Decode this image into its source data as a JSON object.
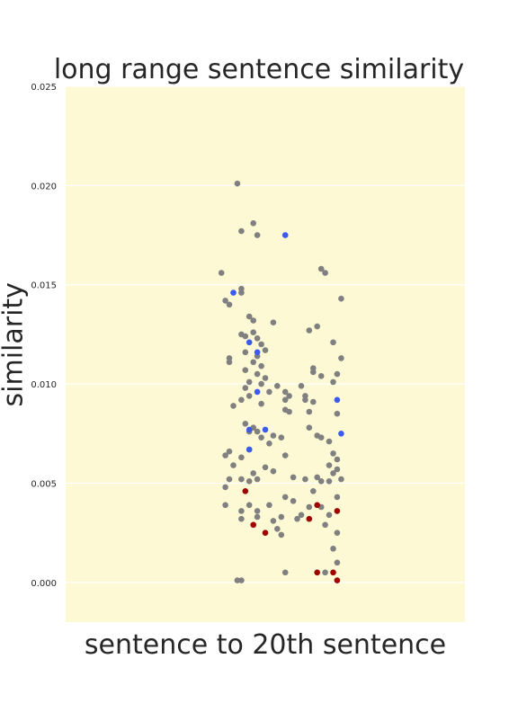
{
  "chart_data": {
    "type": "scatter",
    "title": "long range sentence similarity",
    "xlabel": "sentence to 20th sentence",
    "ylabel": "similarity",
    "ylim": [
      -0.002,
      0.025
    ],
    "yticks": [
      "0.000",
      "0.005",
      "0.010",
      "0.015",
      "0.020",
      "0.025"
    ],
    "ytick_values": [
      0.0,
      0.005,
      0.01,
      0.015,
      0.02,
      0.025
    ],
    "grid": true,
    "legend": "none",
    "colors": {
      "background": "#fdf9d4",
      "grid": "#ffffff",
      "gray": "#808080",
      "blue": "#3b5bf0",
      "red": "#a00000"
    },
    "x_range": [
      -0.5,
      0.5
    ],
    "series": [
      {
        "color": "gray",
        "points": [
          [
            -0.07,
            0.0201
          ],
          [
            -0.06,
            0.0177
          ],
          [
            -0.03,
            0.0181
          ],
          [
            -0.02,
            0.0175
          ],
          [
            0.14,
            0.0158
          ],
          [
            0.15,
            0.0156
          ],
          [
            -0.11,
            0.0156
          ],
          [
            -0.06,
            0.0148
          ],
          [
            -0.06,
            0.0146
          ],
          [
            -0.1,
            0.0142
          ],
          [
            -0.09,
            0.014
          ],
          [
            -0.04,
            0.0134
          ],
          [
            -0.03,
            0.0132
          ],
          [
            0.19,
            0.0143
          ],
          [
            0.02,
            0.0131
          ],
          [
            0.11,
            0.0127
          ],
          [
            0.13,
            0.0129
          ],
          [
            -0.06,
            0.0125
          ],
          [
            -0.05,
            0.0124
          ],
          [
            -0.03,
            0.0126
          ],
          [
            -0.02,
            0.0123
          ],
          [
            -0.01,
            0.012
          ],
          [
            0.17,
            0.0121
          ],
          [
            0.0,
            0.0117
          ],
          [
            -0.05,
            0.0116
          ],
          [
            -0.02,
            0.0114
          ],
          [
            -0.03,
            0.0111
          ],
          [
            -0.01,
            0.0109
          ],
          [
            -0.09,
            0.0113
          ],
          [
            -0.09,
            0.0111
          ],
          [
            0.19,
            0.0113
          ],
          [
            0.12,
            0.0108
          ],
          [
            0.12,
            0.0106
          ],
          [
            0.14,
            0.0104
          ],
          [
            0.18,
            0.0105
          ],
          [
            -0.05,
            0.0107
          ],
          [
            -0.02,
            0.0105
          ],
          [
            0.0,
            0.0103
          ],
          [
            -0.04,
            0.0101
          ],
          [
            -0.01,
            0.01
          ],
          [
            0.03,
            0.0099
          ],
          [
            0.09,
            0.0099
          ],
          [
            0.17,
            0.0101
          ],
          [
            -0.05,
            0.0098
          ],
          [
            0.01,
            0.0096
          ],
          [
            0.05,
            0.0096
          ],
          [
            0.06,
            0.0094
          ],
          [
            0.1,
            0.0094
          ],
          [
            -0.04,
            0.0094
          ],
          [
            -0.06,
            0.0092
          ],
          [
            0.1,
            0.0092
          ],
          [
            0.12,
            0.0091
          ],
          [
            0.05,
            0.0092
          ],
          [
            -0.08,
            0.0089
          ],
          [
            -0.01,
            0.009
          ],
          [
            0.05,
            0.0087
          ],
          [
            0.06,
            0.0086
          ],
          [
            0.11,
            0.0086
          ],
          [
            0.18,
            0.0085
          ],
          [
            -0.05,
            0.008
          ],
          [
            -0.03,
            0.0078
          ],
          [
            -0.02,
            0.0076
          ],
          [
            0.11,
            0.0078
          ],
          [
            -0.04,
            0.0076
          ],
          [
            0.02,
            0.0074
          ],
          [
            -0.01,
            0.0073
          ],
          [
            0.13,
            0.0074
          ],
          [
            0.14,
            0.0073
          ],
          [
            0.04,
            0.0073
          ],
          [
            0.16,
            0.0071
          ],
          [
            0.01,
            0.007
          ],
          [
            -0.04,
            0.0067
          ],
          [
            -0.09,
            0.0066
          ],
          [
            -0.1,
            0.0064
          ],
          [
            0.05,
            0.0064
          ],
          [
            0.17,
            0.0065
          ],
          [
            0.18,
            0.0062
          ],
          [
            -0.06,
            0.0063
          ],
          [
            0.0,
            0.0058
          ],
          [
            0.16,
            0.0059
          ],
          [
            -0.08,
            0.0059
          ],
          [
            0.18,
            0.0057
          ],
          [
            0.17,
            0.0055
          ],
          [
            0.02,
            0.0056
          ],
          [
            0.13,
            0.0053
          ],
          [
            0.14,
            0.0051
          ],
          [
            -0.03,
            0.0055
          ],
          [
            -0.09,
            0.0052
          ],
          [
            -0.06,
            0.0052
          ],
          [
            -0.04,
            0.0051
          ],
          [
            -0.02,
            0.0052
          ],
          [
            0.07,
            0.0053
          ],
          [
            0.1,
            0.0052
          ],
          [
            0.19,
            0.0052
          ],
          [
            0.12,
            0.0046
          ],
          [
            0.16,
            0.0051
          ],
          [
            -0.1,
            0.0048
          ],
          [
            0.05,
            0.0043
          ],
          [
            0.07,
            0.0041
          ],
          [
            0.11,
            0.0038
          ],
          [
            0.18,
            0.0043
          ],
          [
            0.16,
            0.0034
          ],
          [
            0.14,
            0.0038
          ],
          [
            -0.1,
            0.0039
          ],
          [
            -0.04,
            0.0039
          ],
          [
            0.01,
            0.0039
          ],
          [
            -0.02,
            0.0036
          ],
          [
            -0.06,
            0.0036
          ],
          [
            0.04,
            0.0033
          ],
          [
            0.02,
            0.0031
          ],
          [
            0.08,
            0.0032
          ],
          [
            -0.02,
            0.0033
          ],
          [
            0.09,
            0.0034
          ],
          [
            0.15,
            0.0029
          ],
          [
            0.18,
            0.0025
          ],
          [
            -0.06,
            0.0032
          ],
          [
            0.03,
            0.0027
          ],
          [
            0.04,
            0.0024
          ],
          [
            0.17,
            0.0017
          ],
          [
            0.18,
            0.001
          ],
          [
            0.05,
            0.0005
          ],
          [
            0.15,
            0.0005
          ],
          [
            -0.07,
            0.0001
          ],
          [
            -0.06,
            0.0001
          ]
        ]
      },
      {
        "color": "blue",
        "points": [
          [
            0.05,
            0.0175
          ],
          [
            -0.08,
            0.0146
          ],
          [
            -0.04,
            0.0121
          ],
          [
            -0.02,
            0.0116
          ],
          [
            -0.02,
            0.0096
          ],
          [
            0.18,
            0.0092
          ],
          [
            -0.04,
            0.0077
          ],
          [
            0.0,
            0.0077
          ],
          [
            0.19,
            0.0075
          ],
          [
            -0.04,
            0.0067
          ]
        ]
      },
      {
        "color": "red",
        "points": [
          [
            -0.05,
            0.0046
          ],
          [
            0.13,
            0.0039
          ],
          [
            0.18,
            0.0036
          ],
          [
            0.11,
            0.0032
          ],
          [
            -0.03,
            0.0029
          ],
          [
            0.0,
            0.0025
          ],
          [
            0.13,
            0.0005
          ],
          [
            0.17,
            0.0005
          ],
          [
            0.18,
            0.0001
          ]
        ]
      }
    ]
  }
}
